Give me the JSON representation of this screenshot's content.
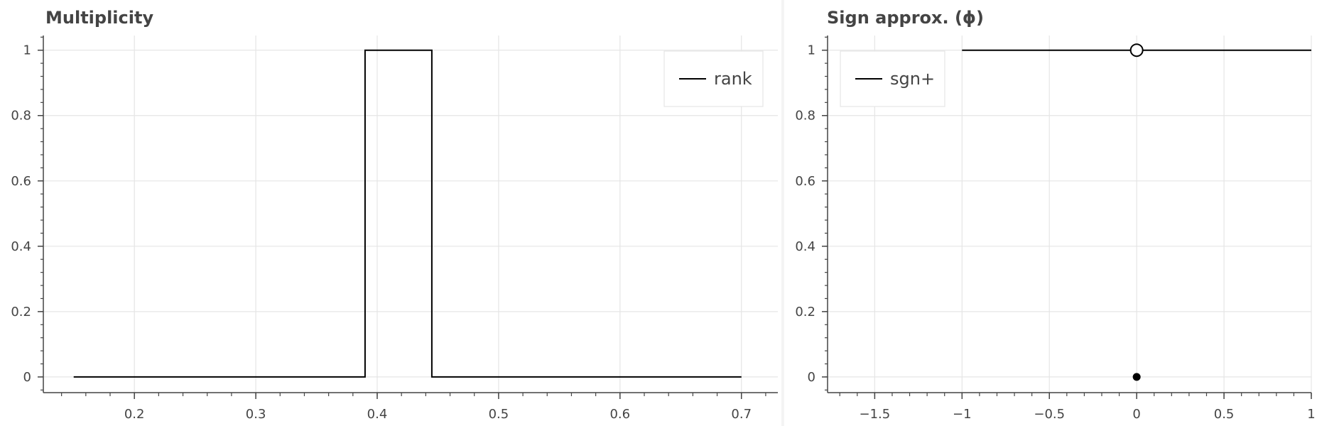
{
  "colors": {
    "background": "#ffffff",
    "outer": "#f4f4f4",
    "grid": "#e5e5e5",
    "axis": "#444444",
    "line": "#000000",
    "text": "#444444"
  },
  "chart_data": [
    {
      "type": "line",
      "title": "Multiplicity",
      "xlabel": "",
      "ylabel": "",
      "xlim": [
        0.125,
        0.73
      ],
      "ylim": [
        -0.048,
        1.045
      ],
      "x_ticks": [
        0.2,
        0.3,
        0.4,
        0.5,
        0.6,
        0.7
      ],
      "x_tick_labels": [
        "0.2",
        "0.3",
        "0.4",
        "0.5",
        "0.6",
        "0.7"
      ],
      "y_ticks": [
        0,
        0.2,
        0.4,
        0.6,
        0.8,
        1
      ],
      "y_tick_labels": [
        "0",
        "0.2",
        "0.4",
        "0.6",
        "0.8",
        "1"
      ],
      "grid": true,
      "legend": {
        "position": "top-right",
        "entries": [
          "rank"
        ]
      },
      "series": [
        {
          "name": "rank",
          "style": "step",
          "x": [
            0.15,
            0.39,
            0.39,
            0.445,
            0.445,
            0.7
          ],
          "y": [
            0,
            0,
            1,
            1,
            0,
            0
          ]
        }
      ]
    },
    {
      "type": "line",
      "title": "Sign approx. (ϕ)",
      "xlabel": "",
      "ylabel": "",
      "xlim": [
        -1.77,
        1.0
      ],
      "ylim": [
        -0.048,
        1.045
      ],
      "x_ticks": [
        -1.5,
        -1,
        -0.5,
        0,
        0.5,
        1
      ],
      "x_tick_labels": [
        "−1.5",
        "−1",
        "−0.5",
        "0",
        "0.5",
        "1"
      ],
      "y_ticks": [
        0,
        0.2,
        0.4,
        0.6,
        0.8,
        1
      ],
      "y_tick_labels": [
        "0",
        "0.2",
        "0.4",
        "0.6",
        "0.8",
        "1"
      ],
      "grid": true,
      "legend": {
        "position": "top-left",
        "entries": [
          "sgn+"
        ]
      },
      "series": [
        {
          "name": "sgn+",
          "x": [
            -1,
            1
          ],
          "y": [
            1,
            1
          ]
        }
      ],
      "markers": [
        {
          "x": 0,
          "y": 1,
          "style": "open-circle"
        },
        {
          "x": 0,
          "y": 0,
          "style": "filled-dot"
        }
      ]
    }
  ]
}
